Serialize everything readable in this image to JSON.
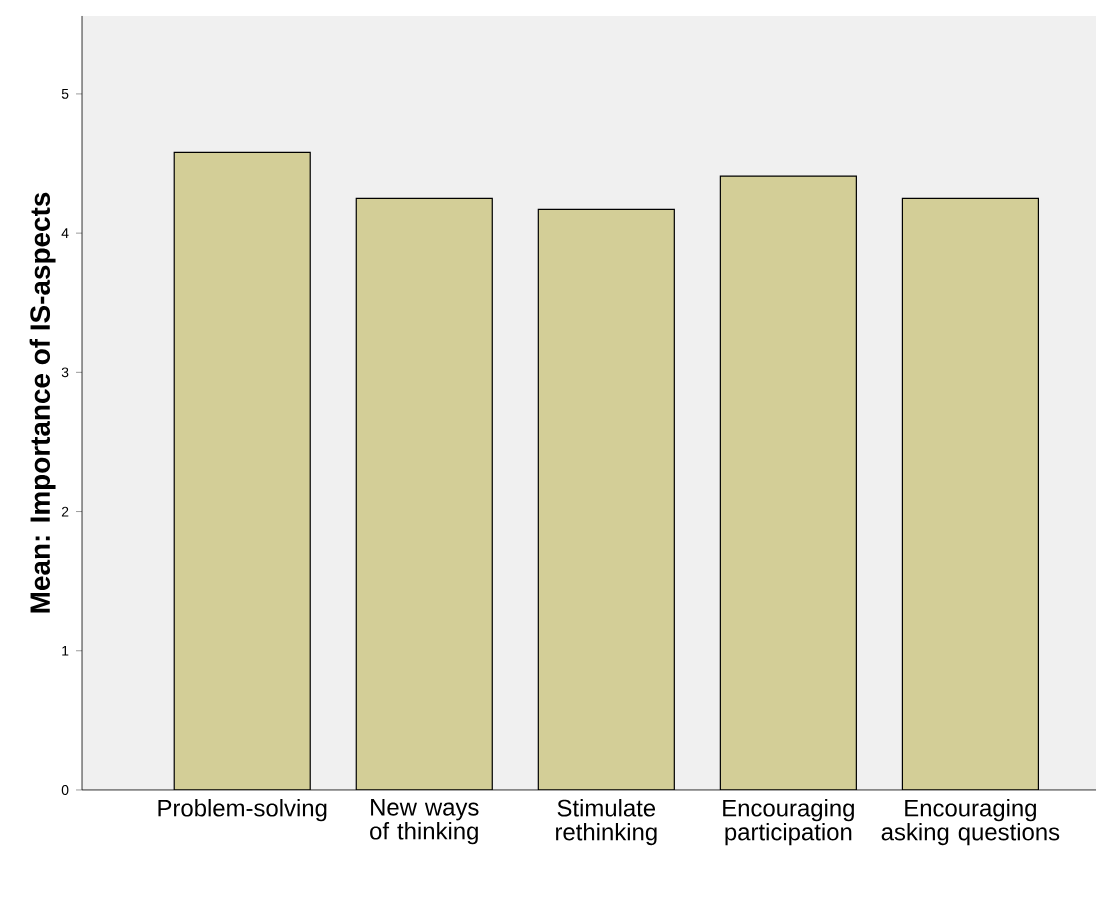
{
  "chart_data": {
    "type": "bar",
    "ylabel": "Mean: Importance of IS-aspects",
    "categories": [
      "Problem-solving",
      "New ways of thinking",
      "Stimulate rethinking",
      "Encouraging participation",
      "Encouraging asking questions"
    ],
    "values": [
      4.58,
      4.25,
      4.17,
      4.41,
      4.25
    ],
    "color": "#d3ce97",
    "ylim": [
      0,
      5.56
    ],
    "yticks": [
      0,
      1,
      2,
      3,
      4,
      5
    ],
    "grid": false
  }
}
